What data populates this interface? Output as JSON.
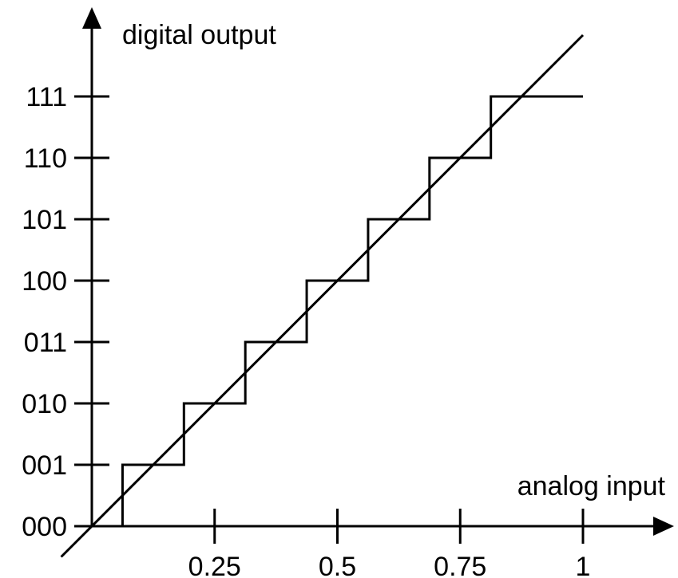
{
  "chart_data": {
    "type": "line",
    "xlabel": "analog input",
    "ylabel": "digital output",
    "x_ticks": [
      {
        "value": 0.25,
        "label": "0.25"
      },
      {
        "value": 0.5,
        "label": "0.5"
      },
      {
        "value": 0.75,
        "label": "0.75"
      },
      {
        "value": 1,
        "label": "1"
      }
    ],
    "y_ticks": [
      {
        "value": 0,
        "label": "000"
      },
      {
        "value": 1,
        "label": "001"
      },
      {
        "value": 2,
        "label": "010"
      },
      {
        "value": 3,
        "label": "011"
      },
      {
        "value": 4,
        "label": "100"
      },
      {
        "value": 5,
        "label": "101"
      },
      {
        "value": 6,
        "label": "110"
      },
      {
        "value": 7,
        "label": "111"
      }
    ],
    "xlim": [
      0,
      1
    ],
    "ylim": [
      0,
      7
    ],
    "grid": false,
    "series": [
      {
        "style": "step",
        "x": [
          0,
          0.0625,
          0.0625,
          0.1875,
          0.1875,
          0.3125,
          0.3125,
          0.4375,
          0.4375,
          0.5625,
          0.5625,
          0.6875,
          0.6875,
          0.8125,
          0.8125,
          1.0
        ],
        "y": [
          0,
          0,
          1,
          1,
          2,
          2,
          3,
          3,
          4,
          4,
          5,
          5,
          6,
          6,
          7,
          7
        ]
      },
      {
        "style": "straight",
        "x": [
          -0.0625,
          1.0
        ],
        "y": [
          -0.5,
          8.0
        ]
      }
    ],
    "colors": {
      "ink": "#000000",
      "background": "#ffffff"
    }
  }
}
